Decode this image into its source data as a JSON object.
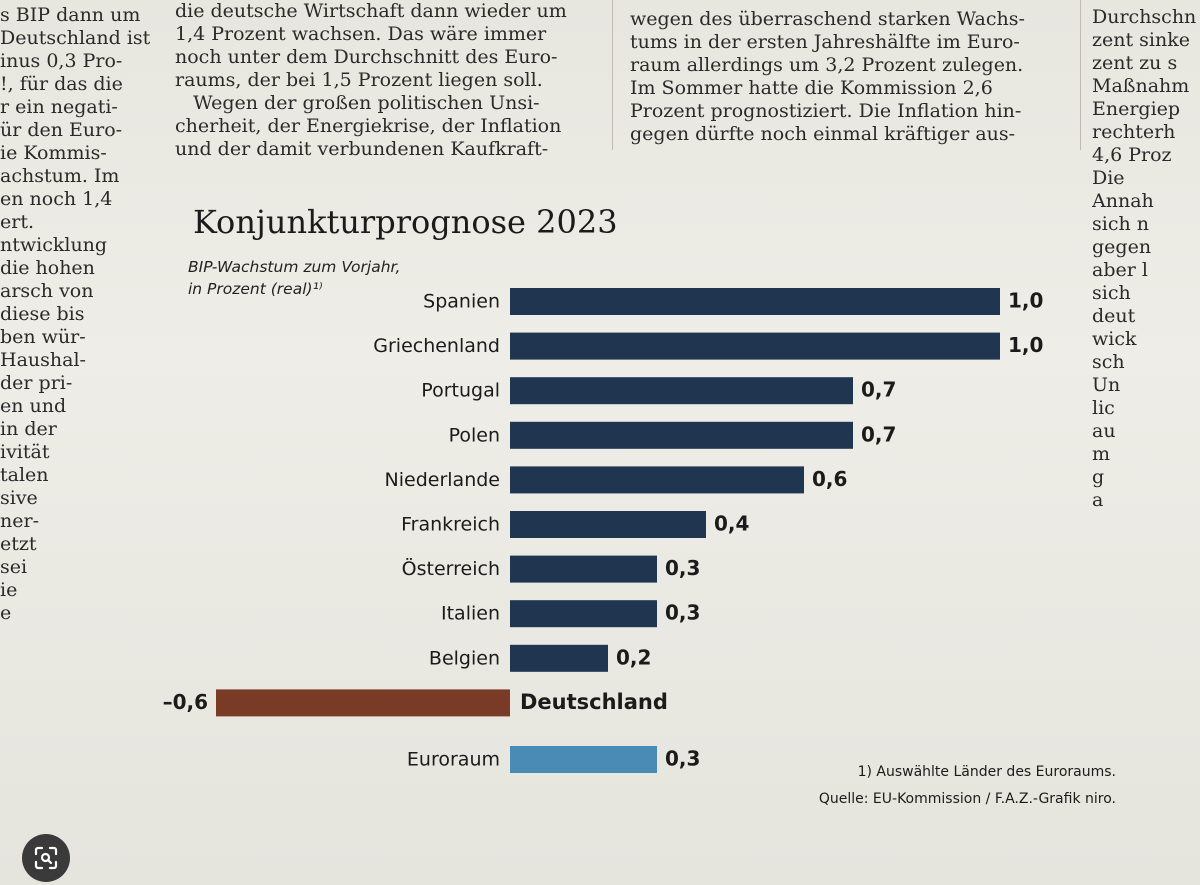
{
  "article": {
    "col_left": "s BIP dann um\nDeutschland ist\ninus 0,3 Pro-\n!, für das die\nr ein negati-\nür den Euro-\nie Kommis-\nachstum. Im\nen noch 1,4\nert.\nntwicklung\ndie hohen\narsch von\ndiese bis\nben wür-\nHaushal-\nder pri-\nen und\nin der\nivität\ntalen\nsive\nner-\netzt\nsei\nie\ne",
    "col_mid": "die deutsche Wirtschaft dann wieder um\n1,4 Prozent wachsen. Das wäre immer\nnoch unter dem Durchschnitt des Euro-\nraums, der bei 1,5 Prozent liegen soll.\n   Wegen der großen politischen Unsi-\ncherheit, der Energiekrise, der Inflation\nund der damit verbundenen Kaufkraft-",
    "col_right": "wegen des überraschend starken Wachs-\ntums in der ersten Jahreshälfte im Euro-\nraum allerdings um 3,2 Prozent zulegen.\nIm Sommer hatte die Kommission 2,6\nProzent prognostiziert. Die Inflation hin-\ngegen dürfte noch einmal kräftiger aus-",
    "col_far": "Durchschn\nzent sinke\nzent zu s\nMaßnahm\nEnergiep\nrechterh\n4,6 Proz\nDie\nAnnah\nsich n\ngegen\naber l\nsich\ndeut\nwick\nsch\nUn\nlic\nau\nm\ng\na"
  },
  "chart_data": {
    "type": "bar",
    "orientation": "horizontal",
    "title": "Konjunkturprognose 2023",
    "subtitle": "BIP-Wachstum zum Vorjahr,\nin Prozent (real)¹⁾",
    "categories": [
      "Spanien",
      "Griechenland",
      "Portugal",
      "Polen",
      "Niederlande",
      "Frankreich",
      "Österreich",
      "Italien",
      "Belgien",
      "Deutschland",
      "Euroraum"
    ],
    "values": [
      1.0,
      1.0,
      0.7,
      0.7,
      0.6,
      0.4,
      0.3,
      0.3,
      0.2,
      -0.6,
      0.3
    ],
    "value_labels": [
      "1,0",
      "1,0",
      "0,7",
      "0,7",
      "0,6",
      "0,4",
      "0,3",
      "0,3",
      "0,2",
      "–0,6",
      "0,3"
    ],
    "highlight": {
      "Deutschland": "#7a3b26",
      "Euroraum": "#4a8bb5"
    },
    "bar_color": "#1f3550",
    "xlim": [
      -0.6,
      1.0
    ],
    "grid": false,
    "footnote": "1) Auswählte Länder des Euroraums.",
    "source": "Quelle: EU-Kommission / F.A.Z.-Grafik niro."
  },
  "ui": {
    "lens_icon": "lens-search-icon"
  }
}
